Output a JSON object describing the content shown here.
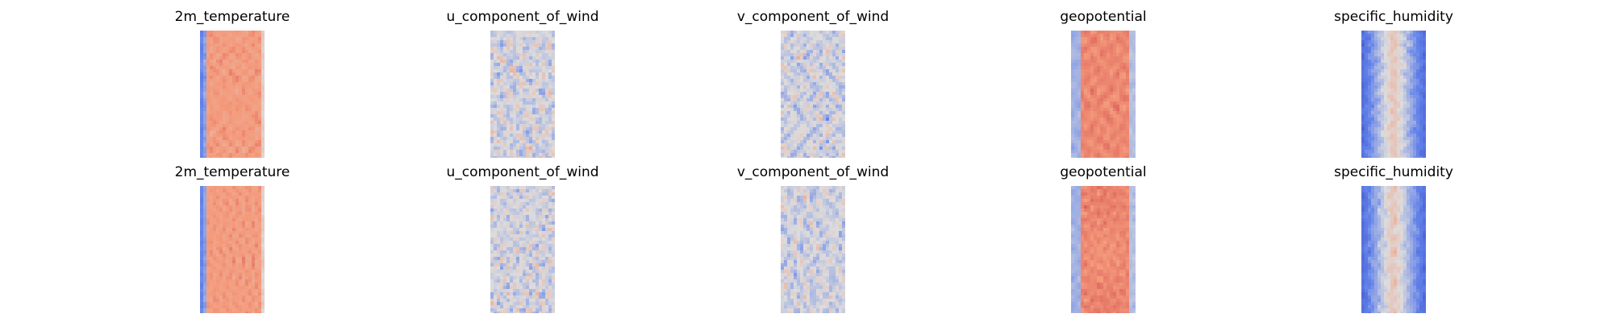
{
  "figure": {
    "rows": [
      {
        "panels": [
          {
            "title": "2m_temperature",
            "colormap": "coolwarm",
            "variable": "2m_temperature"
          },
          {
            "title": "u_component_of_wind",
            "colormap": "coolwarm",
            "variable": "u_component_of_wind"
          },
          {
            "title": "v_component_of_wind",
            "colormap": "coolwarm",
            "variable": "v_component_of_wind"
          },
          {
            "title": "geopotential",
            "colormap": "coolwarm",
            "variable": "geopotential"
          },
          {
            "title": "specific_humidity",
            "colormap": "coolwarm",
            "variable": "specific_humidity"
          }
        ]
      },
      {
        "panels": [
          {
            "title": "2m_temperature",
            "colormap": "coolwarm",
            "variable": "2m_temperature"
          },
          {
            "title": "u_component_of_wind",
            "colormap": "coolwarm",
            "variable": "u_component_of_wind"
          },
          {
            "title": "v_component_of_wind",
            "colormap": "coolwarm",
            "variable": "v_component_of_wind"
          },
          {
            "title": "geopotential",
            "colormap": "coolwarm",
            "variable": "geopotential"
          },
          {
            "title": "specific_humidity",
            "colormap": "coolwarm",
            "variable": "specific_humidity"
          }
        ]
      }
    ],
    "colors": {
      "cold": "#3b4cc0",
      "neutral": "#dddcdc",
      "warm": "#b40426"
    }
  }
}
